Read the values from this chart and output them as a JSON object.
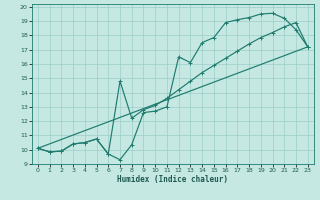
{
  "xlabel": "Humidex (Indice chaleur)",
  "bg_color": "#c5e8e3",
  "grid_color": "#9ecec8",
  "line_color": "#1e7b6e",
  "text_color": "#1e5a50",
  "xlim": [
    -0.5,
    23.5
  ],
  "ylim": [
    9,
    20.2
  ],
  "xtick_labels": [
    "0",
    "1",
    "2",
    "3",
    "4",
    "5",
    "6",
    "7",
    "8",
    "9",
    "10",
    "11",
    "12",
    "13",
    "14",
    "15",
    "16",
    "17",
    "18",
    "19",
    "20",
    "21",
    "22",
    "23"
  ],
  "ytick_labels": [
    "9",
    "10",
    "11",
    "12",
    "13",
    "14",
    "15",
    "16",
    "17",
    "18",
    "19",
    "20"
  ],
  "ytick_vals": [
    9,
    10,
    11,
    12,
    13,
    14,
    15,
    16,
    17,
    18,
    19,
    20
  ],
  "line1_x": [
    0,
    1,
    2,
    3,
    4,
    5,
    6,
    7,
    8,
    9,
    10,
    11,
    12,
    13,
    14,
    15,
    16,
    17,
    18,
    19,
    20,
    21,
    22,
    23
  ],
  "line1_y": [
    10.1,
    9.85,
    9.9,
    10.4,
    10.5,
    10.75,
    9.7,
    9.3,
    10.35,
    12.6,
    12.7,
    13.0,
    16.5,
    16.1,
    17.5,
    17.85,
    18.9,
    19.1,
    19.25,
    19.5,
    19.55,
    19.2,
    18.4,
    17.2
  ],
  "line2_x": [
    0,
    1,
    2,
    3,
    4,
    5,
    6,
    7,
    8,
    9,
    10,
    11,
    12,
    13,
    14,
    15,
    16,
    17,
    18,
    19,
    20,
    21,
    22,
    23
  ],
  "line2_y": [
    10.1,
    9.85,
    9.9,
    10.4,
    10.5,
    10.75,
    9.7,
    14.8,
    12.2,
    12.8,
    13.1,
    13.6,
    14.2,
    14.8,
    15.4,
    15.9,
    16.4,
    16.9,
    17.4,
    17.85,
    18.2,
    18.6,
    18.9,
    17.2
  ],
  "line3_x": [
    0,
    23
  ],
  "line3_y": [
    10.1,
    17.2
  ],
  "lw": 0.85,
  "ms": 2.0
}
